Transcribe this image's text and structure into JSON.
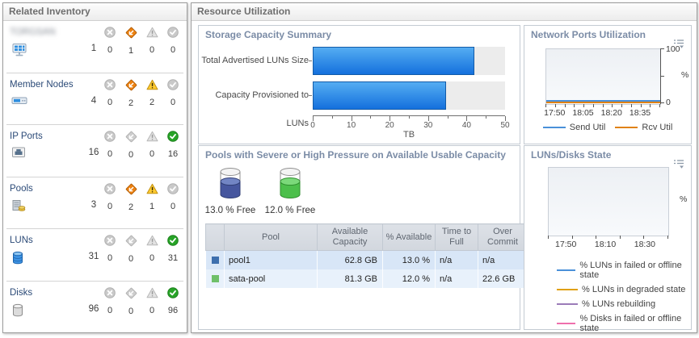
{
  "inventory": {
    "title": "Related Inventory",
    "rows": [
      {
        "label": "TORGSAN",
        "redacted": true,
        "icon": "storage-system-icon",
        "count": "1",
        "statuses": [
          {
            "name": "critical",
            "count": "0",
            "active": false
          },
          {
            "name": "major",
            "count": "1",
            "active": true
          },
          {
            "name": "warning",
            "count": "0",
            "active": false
          },
          {
            "name": "normal",
            "count": "0",
            "active": false
          }
        ]
      },
      {
        "label": "Member Nodes",
        "redacted": false,
        "icon": "member-node-icon",
        "count": "4",
        "statuses": [
          {
            "name": "critical",
            "count": "0",
            "active": false
          },
          {
            "name": "major",
            "count": "2",
            "active": true
          },
          {
            "name": "warning",
            "count": "2",
            "active": true
          },
          {
            "name": "normal",
            "count": "0",
            "active": false
          }
        ]
      },
      {
        "label": "IP Ports",
        "redacted": false,
        "icon": "ip-port-icon",
        "count": "16",
        "statuses": [
          {
            "name": "critical",
            "count": "0",
            "active": false
          },
          {
            "name": "major",
            "count": "0",
            "active": false
          },
          {
            "name": "warning",
            "count": "0",
            "active": false
          },
          {
            "name": "normal",
            "count": "16",
            "active": true
          }
        ]
      },
      {
        "label": "Pools",
        "redacted": false,
        "icon": "pool-icon",
        "count": "3",
        "statuses": [
          {
            "name": "critical",
            "count": "0",
            "active": false
          },
          {
            "name": "major",
            "count": "2",
            "active": true
          },
          {
            "name": "warning",
            "count": "1",
            "active": true
          },
          {
            "name": "normal",
            "count": "0",
            "active": false
          }
        ]
      },
      {
        "label": "LUNs",
        "redacted": false,
        "icon": "lun-icon",
        "count": "31",
        "statuses": [
          {
            "name": "critical",
            "count": "0",
            "active": false
          },
          {
            "name": "major",
            "count": "0",
            "active": false
          },
          {
            "name": "warning",
            "count": "0",
            "active": false
          },
          {
            "name": "normal",
            "count": "31",
            "active": true
          }
        ]
      },
      {
        "label": "Disks",
        "redacted": false,
        "icon": "disk-icon",
        "count": "96",
        "statuses": [
          {
            "name": "critical",
            "count": "0",
            "active": false
          },
          {
            "name": "major",
            "count": "0",
            "active": false
          },
          {
            "name": "warning",
            "count": "0",
            "active": false
          },
          {
            "name": "normal",
            "count": "96",
            "active": true
          }
        ]
      }
    ]
  },
  "resource": {
    "title": "Resource Utilization",
    "storage": {
      "title": "Storage Capacity Summary"
    },
    "network": {
      "title": "Network Ports Utilization",
      "ylabel": "%",
      "ymax_label": "100",
      "ymin_label": "0",
      "xticks": [
        "17:50",
        "18:05",
        "18:20",
        "18:35"
      ],
      "menu_icon": "chart-menu-icon"
    },
    "pools": {
      "title": "Pools with Severe or High Pressure on Available Usable Capacity",
      "gauges": [
        {
          "label": "13.0 % Free",
          "fill": "#46569e",
          "fill_light": "#7285c4",
          "stroke": "#303e75"
        },
        {
          "label": "12.0 % Free",
          "fill": "#4cbf4b",
          "fill_light": "#7bd97a",
          "stroke": "#2f8f2e"
        }
      ],
      "table": {
        "headers": [
          "Pool",
          "Available Capacity",
          "% Available",
          "Time to Full",
          "Over Commit"
        ],
        "rows": [
          {
            "swatch": "#3d6fae",
            "pool": "pool1",
            "available_capacity": "62.8 GB",
            "pct_available": "13.0 %",
            "time_to_full": "n/a",
            "over_commit": "n/a",
            "over_commit_muted": true
          },
          {
            "swatch": "#6fc069",
            "pool": "sata-pool",
            "available_capacity": "81.3 GB",
            "pct_available": "12.0 %",
            "time_to_full": "n/a",
            "over_commit": "22.6 GB",
            "over_commit_muted": false
          }
        ]
      }
    },
    "luns_disks": {
      "title": "LUNs/Disks State",
      "ylabel": "%",
      "xticks": [
        "17:50",
        "18:10",
        "18:30"
      ],
      "menu_icon": "chart-menu-icon"
    }
  },
  "chart_data": [
    {
      "type": "bar",
      "orientation": "horizontal",
      "title": "Storage Capacity Summary",
      "categories": [
        "Total Advertised LUNs Size",
        "Capacity Provisioned to LUNs"
      ],
      "values": [
        42.0,
        34.6
      ],
      "xlabel": "TB",
      "xlim": [
        0,
        50
      ],
      "xticks": [
        0,
        10,
        20,
        30,
        40,
        50
      ],
      "bar_color": "#1f7ce0",
      "grid": false
    },
    {
      "type": "line",
      "title": "Network Ports Utilization",
      "x": [
        "17:50",
        "18:05",
        "18:20",
        "18:35"
      ],
      "ylabel": "%",
      "ylim": [
        0,
        100
      ],
      "legend_position": "bottom",
      "series": [
        {
          "name": "Send Util",
          "color": "#4a90d9",
          "values": [
            4,
            4,
            4,
            4
          ]
        },
        {
          "name": "Rcv Util",
          "color": "#e08214",
          "values": [
            2,
            2,
            2,
            2
          ]
        }
      ]
    },
    {
      "type": "line",
      "title": "LUNs/Disks State",
      "x": [
        "17:50",
        "18:10",
        "18:30"
      ],
      "ylabel": "%",
      "legend_position": "bottom",
      "series": [
        {
          "name": "% LUNs in failed or offline state",
          "color": "#4a90d9",
          "values": []
        },
        {
          "name": "% LUNs in degraded state",
          "color": "#e0a010",
          "values": []
        },
        {
          "name": "% LUNs rebuilding",
          "color": "#9b7bb8",
          "values": []
        },
        {
          "name": "% Disks in failed or offline state",
          "color": "#ef6fad",
          "values": []
        }
      ]
    }
  ]
}
